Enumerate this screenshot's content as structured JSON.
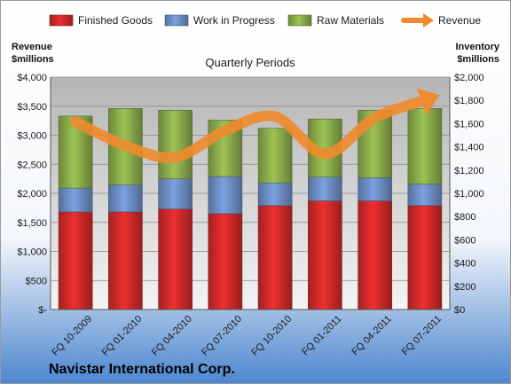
{
  "chart_data": {
    "type": "bar",
    "title": "Quarterly Periods",
    "company": "Navistar International Corp.",
    "categories": [
      "FQ 10-2009",
      "FQ 01-2010",
      "FQ 04-2010",
      "FQ 07-2010",
      "FQ 10-2010",
      "FQ 01-2011",
      "FQ 04-2011",
      "FQ 07-2011"
    ],
    "stacked": true,
    "left_axis": {
      "title_line1": "Revenue",
      "title_line2": "$millions",
      "range": [
        0,
        4000
      ],
      "tick_labels": [
        "$-",
        "$500",
        "$1,000",
        "$1,500",
        "$2,000",
        "$2,500",
        "$3,000",
        "$3,500",
        "$4,000"
      ]
    },
    "right_axis": {
      "title_line1": "Inventory",
      "title_line2": "$millions",
      "range": [
        0,
        2000
      ],
      "tick_labels": [
        "$0",
        "$200",
        "$400",
        "$600",
        "$800",
        "$1,000",
        "$1,200",
        "$1,400",
        "$1,600",
        "$1,800",
        "$2,000"
      ]
    },
    "series": [
      {
        "name": "Finished Goods",
        "axis": "right",
        "color": "#d42a2a",
        "values": [
          840,
          840,
          865,
          825,
          895,
          935,
          935,
          895
        ]
      },
      {
        "name": "Work in Progress",
        "axis": "right",
        "color": "#6f90c8",
        "values": [
          205,
          235,
          260,
          320,
          195,
          205,
          200,
          185
        ]
      },
      {
        "name": "Raw Materials",
        "axis": "right",
        "color": "#8cae4c",
        "values": [
          620,
          655,
          590,
          485,
          470,
          500,
          580,
          650
        ]
      },
      {
        "name": "Revenue",
        "axis": "left",
        "type": "line",
        "color": "#f08a2c",
        "values": [
          3230,
          2820,
          2620,
          3080,
          3320,
          2680,
          3300,
          3600
        ]
      }
    ],
    "legend_position": "top",
    "grid": true,
    "y_gridlines": true
  }
}
